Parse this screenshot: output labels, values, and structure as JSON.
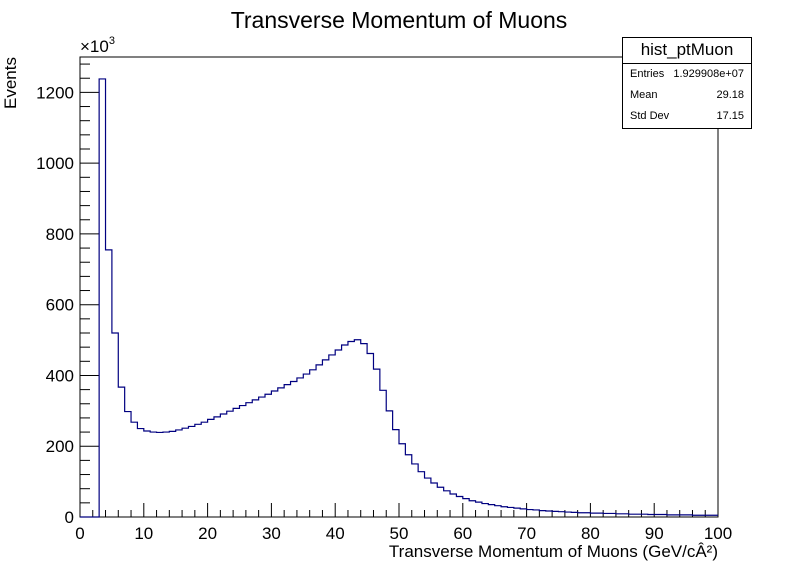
{
  "chart_data": {
    "type": "histogram",
    "title": "Transverse Momentum of Muons",
    "xlabel": "Transverse Momentum of Muons (GeV/cÂ²)",
    "ylabel": "Events",
    "y_exponent_label": "×10",
    "y_exponent_power": "3",
    "xlim": [
      0,
      100
    ],
    "ylim": [
      0,
      1300
    ],
    "x_ticks": [
      "0",
      "10",
      "20",
      "30",
      "40",
      "50",
      "60",
      "70",
      "80",
      "90",
      "100"
    ],
    "y_ticks": [
      "0",
      "200",
      "400",
      "600",
      "800",
      "1000",
      "1200"
    ],
    "bin_width": 1,
    "bin_start": 0,
    "line_color": "#000080",
    "values": [
      0,
      0,
      0,
      1238,
      755,
      520,
      367,
      298,
      268,
      250,
      243,
      240,
      239,
      240,
      242,
      246,
      251,
      256,
      262,
      268,
      276,
      283,
      291,
      299,
      307,
      315,
      323,
      331,
      339,
      347,
      356,
      365,
      374,
      383,
      393,
      404,
      416,
      430,
      444,
      458,
      472,
      486,
      496,
      501,
      490,
      462,
      418,
      358,
      300,
      247,
      207,
      176,
      150,
      128,
      110,
      96,
      84,
      74,
      65,
      58,
      52,
      46,
      42,
      38,
      35,
      32,
      29,
      27,
      25,
      23,
      21,
      20,
      18,
      17,
      16,
      15,
      14,
      13,
      12,
      12,
      11,
      11,
      10,
      10,
      9,
      9,
      8,
      8,
      8,
      7,
      7,
      7,
      6,
      6,
      6,
      6,
      5,
      5,
      5,
      5
    ]
  },
  "stats": {
    "title": "hist_ptMuon",
    "rows": [
      {
        "label": "Entries",
        "value": "1.929908e+07"
      },
      {
        "label": "Mean",
        "value": "29.18"
      },
      {
        "label": "Std Dev",
        "value": "17.15"
      }
    ]
  }
}
